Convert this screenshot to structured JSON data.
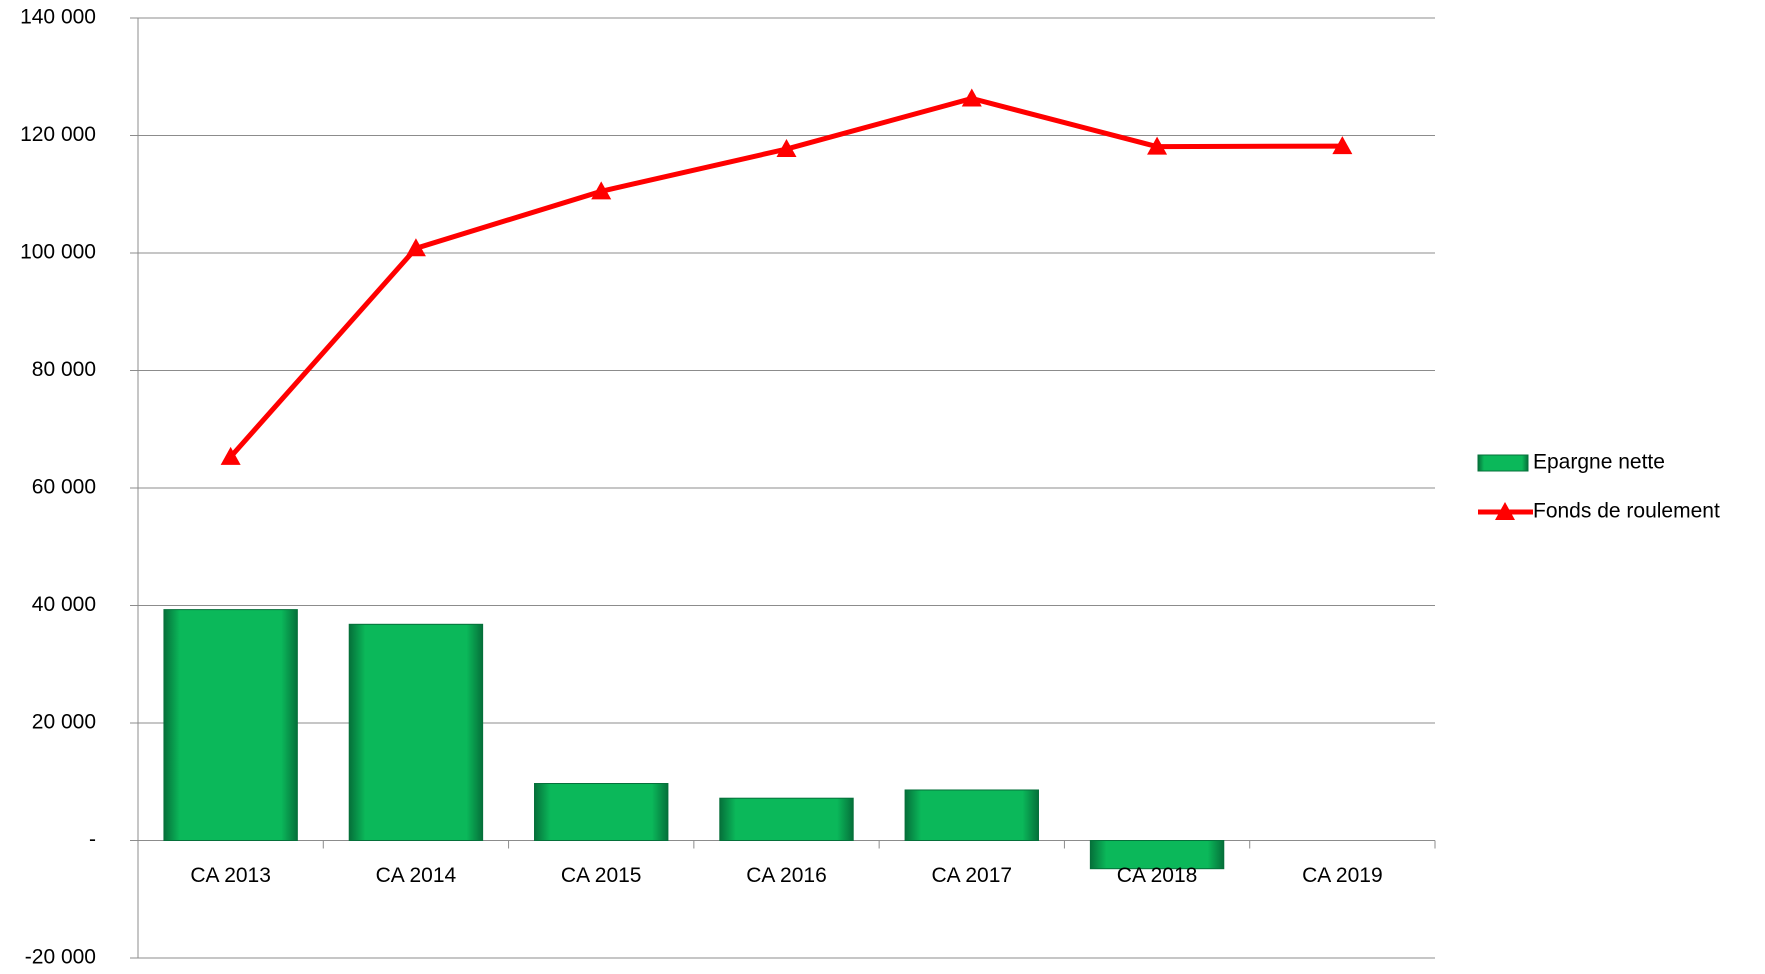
{
  "chart_data": {
    "type": "bar_line",
    "categories": [
      "CA 2013",
      "CA 2014",
      "CA 2015",
      "CA 2016",
      "CA 2017",
      "CA 2018",
      "CA 2019"
    ],
    "series": [
      {
        "name": "Epargne nette",
        "type": "bar",
        "color": "#0bb85a",
        "values": [
          39300,
          36800,
          9700,
          7200,
          8600,
          -4800,
          null
        ]
      },
      {
        "name": "Fonds de roulement",
        "type": "line",
        "color": "#ff0000",
        "values": [
          65300,
          100800,
          110500,
          117700,
          126300,
          118100,
          118200
        ]
      }
    ],
    "ylim": [
      -20000,
      140000
    ],
    "yticks": [
      {
        "value": -20000,
        "label": "-20 000"
      },
      {
        "value": 0,
        "label": "-"
      },
      {
        "value": 20000,
        "label": "20 000"
      },
      {
        "value": 40000,
        "label": "40 000"
      },
      {
        "value": 60000,
        "label": "60 000"
      },
      {
        "value": 80000,
        "label": "80 000"
      },
      {
        "value": 100000,
        "label": "100 000"
      },
      {
        "value": 120000,
        "label": "120 000"
      },
      {
        "value": 140000,
        "label": "140 000"
      }
    ],
    "grid": true,
    "legend": "right"
  }
}
